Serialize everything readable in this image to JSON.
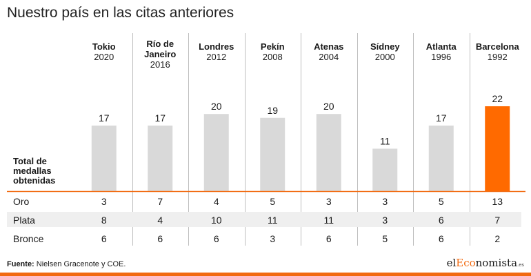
{
  "title": "Nuestro país en las citas anteriores",
  "colors": {
    "bar_default": "#d9d9d9",
    "bar_highlight": "#ff6a00",
    "baseline": "#f26a10",
    "row_shade": "#efefef"
  },
  "chart_data": {
    "type": "bar",
    "ylabel": "Total de medallas obtenidas",
    "ylim": [
      0,
      22
    ],
    "categories": [
      {
        "city": "Tokio",
        "year": "2020"
      },
      {
        "city": "Río de Janeiro",
        "year": "2016"
      },
      {
        "city": "Londres",
        "year": "2012"
      },
      {
        "city": "Pekín",
        "year": "2008"
      },
      {
        "city": "Atenas",
        "year": "2004"
      },
      {
        "city": "Sídney",
        "year": "2000"
      },
      {
        "city": "Atlanta",
        "year": "1996"
      },
      {
        "city": "Barcelona",
        "year": "1992"
      }
    ],
    "totals": [
      17,
      17,
      20,
      19,
      20,
      11,
      17,
      22
    ],
    "highlight_index": 7,
    "table": [
      {
        "label": "Oro",
        "values": [
          3,
          7,
          4,
          5,
          3,
          3,
          5,
          13
        ]
      },
      {
        "label": "Plata",
        "values": [
          8,
          4,
          10,
          11,
          11,
          3,
          6,
          7
        ]
      },
      {
        "label": "Bronce",
        "values": [
          6,
          6,
          6,
          3,
          6,
          5,
          6,
          2
        ]
      }
    ]
  },
  "footer": {
    "source_label": "Fuente:",
    "source_text": " Nielsen Gracenote y COE.",
    "logo_prefix": "el",
    "logo_mid": "Eco",
    "logo_suffix": "nomista",
    "logo_tld": ".es"
  }
}
